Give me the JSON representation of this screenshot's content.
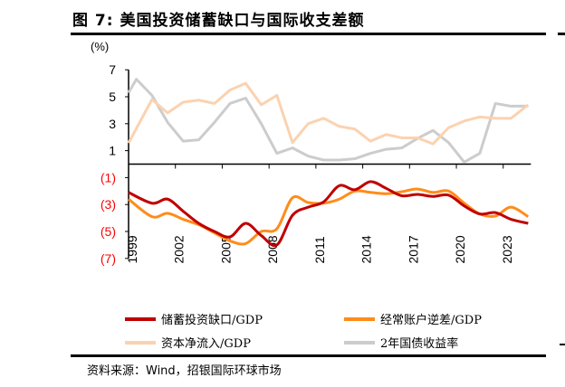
{
  "title": "图 7: 美国投资储蓄缺口与国际收支差额",
  "source": "资料来源：Wind，招银国际环球市场",
  "chart_data": {
    "type": "line",
    "unit_label": "(%)",
    "ylim": [
      -7,
      7
    ],
    "xlim": [
      1999,
      2024.6
    ],
    "y_ticks": [
      {
        "value": 7,
        "label": "7",
        "color": "#000000"
      },
      {
        "value": 5,
        "label": "5",
        "color": "#000000"
      },
      {
        "value": 3,
        "label": "3",
        "color": "#000000"
      },
      {
        "value": 1,
        "label": "1",
        "color": "#000000"
      },
      {
        "value": -1,
        "label": "(1)",
        "color": "#ff0000"
      },
      {
        "value": -3,
        "label": "(3)",
        "color": "#ff0000"
      },
      {
        "value": -5,
        "label": "(5)",
        "color": "#ff0000"
      },
      {
        "value": -7,
        "label": "(7)",
        "color": "#ff0000"
      }
    ],
    "x_ticks": [
      "1999",
      "2002",
      "2005",
      "2008",
      "2011",
      "2014",
      "2017",
      "2020",
      "2023"
    ],
    "grid": false,
    "legend_placement": "bottom",
    "series": [
      {
        "name": "储蓄投资缺口/GDP",
        "color": "#c00000",
        "smooth": true,
        "x": [
          1999,
          2000.5,
          2001.5,
          2002.5,
          2003.5,
          2004.5,
          2005.5,
          2006.5,
          2007.5,
          2008.5,
          2009.5,
          2010.5,
          2011.5,
          2012.5,
          2013.5,
          2014.5,
          2015.5,
          2016.5,
          2017.5,
          2018.5,
          2019.5,
          2020.5,
          2021.5,
          2022.5,
          2023.5,
          2024.6
        ],
        "y": [
          -2.1,
          -2.9,
          -2.6,
          -3.5,
          -4.4,
          -5.0,
          -5.4,
          -4.4,
          -5.3,
          -6.0,
          -3.8,
          -3.2,
          -2.8,
          -1.6,
          -1.9,
          -1.3,
          -1.8,
          -2.35,
          -2.25,
          -2.4,
          -2.3,
          -3.1,
          -3.7,
          -3.6,
          -4.1,
          -4.4
        ]
      },
      {
        "name": "经常账户逆差/GDP",
        "color": "#ff8c1a",
        "smooth": true,
        "x": [
          1999,
          2000.5,
          2001.5,
          2002.5,
          2003.5,
          2004.5,
          2005.5,
          2006.5,
          2007.5,
          2008.5,
          2009.5,
          2010.5,
          2011.5,
          2012.5,
          2013.5,
          2014.5,
          2015.5,
          2016.5,
          2017.5,
          2018.5,
          2019.5,
          2020.5,
          2021.5,
          2022.5,
          2023.5,
          2024.6
        ],
        "y": [
          -2.6,
          -3.9,
          -3.65,
          -4.1,
          -4.5,
          -5.1,
          -5.7,
          -5.9,
          -5.0,
          -4.8,
          -2.5,
          -2.85,
          -2.9,
          -2.6,
          -2.0,
          -2.1,
          -2.2,
          -2.05,
          -1.85,
          -2.1,
          -2.0,
          -2.9,
          -3.7,
          -3.85,
          -3.2,
          -3.9
        ]
      },
      {
        "name": "资本净流入/GDP",
        "color": "#fbd2b0",
        "smooth": false,
        "x": [
          1999,
          2000.5,
          2001.5,
          2002.5,
          2003.5,
          2004.5,
          2005.5,
          2006.5,
          2007.5,
          2008.5,
          2009.5,
          2010.5,
          2011.5,
          2012.5,
          2013.5,
          2014.5,
          2015.5,
          2016.5,
          2017.5,
          2018.5,
          2019.5,
          2020.5,
          2021.5,
          2022.5,
          2023.5,
          2024.6
        ],
        "y": [
          1.57,
          4.8,
          3.8,
          4.6,
          4.75,
          4.5,
          5.5,
          6.0,
          4.4,
          5.1,
          1.6,
          3.0,
          3.4,
          2.8,
          2.6,
          1.7,
          2.2,
          1.95,
          1.95,
          1.5,
          2.7,
          3.2,
          3.5,
          3.4,
          3.4,
          4.4
        ]
      },
      {
        "name": "2年国债收益率",
        "color": "#cccccc",
        "smooth": false,
        "x": [
          1999,
          1999.5,
          2000.5,
          2001.5,
          2002.5,
          2003.5,
          2004.5,
          2005.5,
          2006.5,
          2007.5,
          2008.5,
          2009.5,
          2010.5,
          2011.5,
          2012.5,
          2013.5,
          2014.5,
          2015.5,
          2016.5,
          2017.5,
          2018.5,
          2019.5,
          2020.5,
          2021.5,
          2022.5,
          2023.5,
          2024.6
        ],
        "y": [
          5.3,
          6.3,
          5.1,
          3.1,
          1.7,
          1.8,
          3.1,
          4.5,
          4.9,
          3.0,
          0.8,
          1.2,
          0.6,
          0.3,
          0.3,
          0.4,
          0.8,
          1.1,
          1.2,
          1.9,
          2.5,
          1.6,
          0.15,
          0.8,
          4.5,
          4.3,
          4.3
        ]
      }
    ]
  }
}
